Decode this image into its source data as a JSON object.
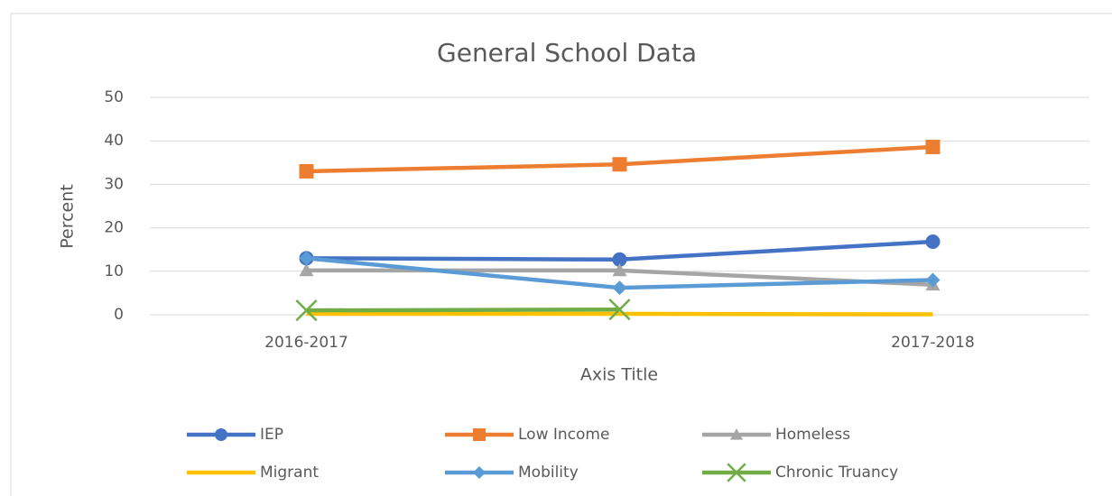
{
  "chart_data": {
    "type": "line",
    "title": "General School Data",
    "y_axis_title": "Percent",
    "x_axis_title": "Axis Title",
    "categories": [
      "2016-2017",
      null,
      "2017-2018"
    ],
    "series": [
      {
        "name": "IEP",
        "color": "#4472c4",
        "marker": "circle",
        "values": [
          13,
          12.7,
          16.8
        ]
      },
      {
        "name": "Low Income",
        "color": "#ed7d31",
        "marker": "square",
        "values": [
          33,
          34.6,
          38.6
        ]
      },
      {
        "name": "Homeless",
        "color": "#a5a5a5",
        "marker": "triangle",
        "values": [
          10.2,
          10.2,
          6.9
        ]
      },
      {
        "name": "Migrant",
        "color": "#ffc000",
        "marker": "none",
        "values": [
          0.2,
          0.2,
          0.1
        ]
      },
      {
        "name": "Mobility",
        "color": "#5b9bd5",
        "marker": "diamond",
        "values": [
          13,
          6.2,
          8
        ]
      },
      {
        "name": "Chronic Truancy",
        "color": "#70ad47",
        "marker": "x",
        "values": [
          1,
          1.2,
          null
        ]
      }
    ],
    "ylim": [
      0,
      50
    ],
    "yticks": [
      0,
      10,
      20,
      30,
      40,
      50
    ],
    "grid": true,
    "legend": "bottom"
  }
}
